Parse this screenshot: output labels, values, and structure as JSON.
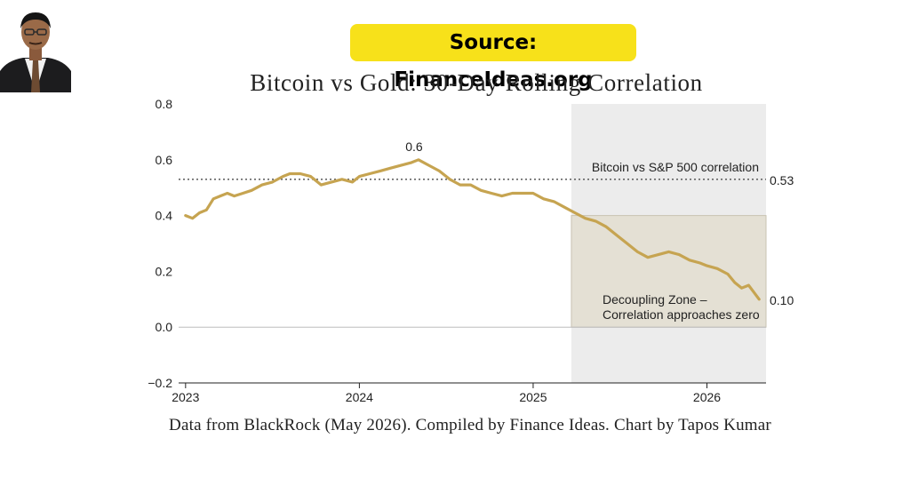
{
  "badge": {
    "source_text": "Source: FinanceIdeas.org"
  },
  "caption": "Data from BlackRock (May 2026). Compiled by Finance Ideas. Chart by Tapos Kumar",
  "colors": {
    "line": "#c6a451",
    "badge": "#f7e11a",
    "shade": "#ececec",
    "zone": "#e4e0d4",
    "reference": "#666666"
  },
  "chart_data": {
    "type": "line",
    "title": "Bitcoin vs Gold: 30-Day Rolling Correlation",
    "xlabel": "",
    "ylabel": "",
    "xlim": [
      2022.96,
      2026.34
    ],
    "ylim": [
      -0.2,
      0.8
    ],
    "x_ticks": [
      "2023",
      "2024",
      "2025",
      "2026"
    ],
    "y_ticks": [
      "0.8",
      "0.6",
      "0.4",
      "0.2",
      "0.0",
      "−0.2"
    ],
    "grid": false,
    "series": [
      {
        "x": [
          2023.0,
          2023.04,
          2023.08,
          2023.12,
          2023.16,
          2023.2,
          2023.24,
          2023.28,
          2023.33,
          2023.38,
          2023.44,
          2023.5,
          2023.56,
          2023.6,
          2023.66,
          2023.72,
          2023.78,
          2023.84,
          2023.9,
          2023.96,
          2024.0,
          2024.06,
          2024.12,
          2024.18,
          2024.24,
          2024.3,
          2024.34,
          2024.4,
          2024.46,
          2024.52,
          2024.58,
          2024.64,
          2024.7,
          2024.76,
          2024.82,
          2024.88,
          2024.94,
          2025.0,
          2025.06,
          2025.12,
          2025.18,
          2025.24,
          2025.3,
          2025.36,
          2025.42,
          2025.48,
          2025.54,
          2025.6,
          2025.66,
          2025.72,
          2025.78,
          2025.84,
          2025.9,
          2025.96,
          2026.0,
          2026.06,
          2026.12,
          2026.16,
          2026.2,
          2026.24,
          2026.3
        ],
        "y": [
          0.4,
          0.39,
          0.41,
          0.42,
          0.46,
          0.47,
          0.48,
          0.47,
          0.48,
          0.49,
          0.51,
          0.52,
          0.54,
          0.55,
          0.55,
          0.54,
          0.51,
          0.52,
          0.53,
          0.52,
          0.54,
          0.55,
          0.56,
          0.57,
          0.58,
          0.59,
          0.6,
          0.58,
          0.56,
          0.53,
          0.51,
          0.51,
          0.49,
          0.48,
          0.47,
          0.48,
          0.48,
          0.48,
          0.46,
          0.45,
          0.43,
          0.41,
          0.39,
          0.38,
          0.36,
          0.33,
          0.3,
          0.27,
          0.25,
          0.26,
          0.27,
          0.26,
          0.24,
          0.23,
          0.22,
          0.21,
          0.19,
          0.16,
          0.14,
          0.15,
          0.1
        ]
      }
    ],
    "reference_line": {
      "y": 0.53,
      "label": "Bitcoin vs S&P 500 correlation",
      "value_label": "0.53"
    },
    "peak_label": {
      "x": 2024.32,
      "y": 0.6,
      "text": "0.6"
    },
    "end_label": {
      "text": "0.10"
    },
    "highlight": {
      "x_start": 2025.22,
      "x_end": 2026.34
    },
    "zone": {
      "x_start": 2025.22,
      "x_end": 2026.34,
      "y_start": 0.0,
      "y_end": 0.4,
      "lines": [
        "Decoupling Zone –",
        "Correlation approaches zero"
      ]
    }
  }
}
